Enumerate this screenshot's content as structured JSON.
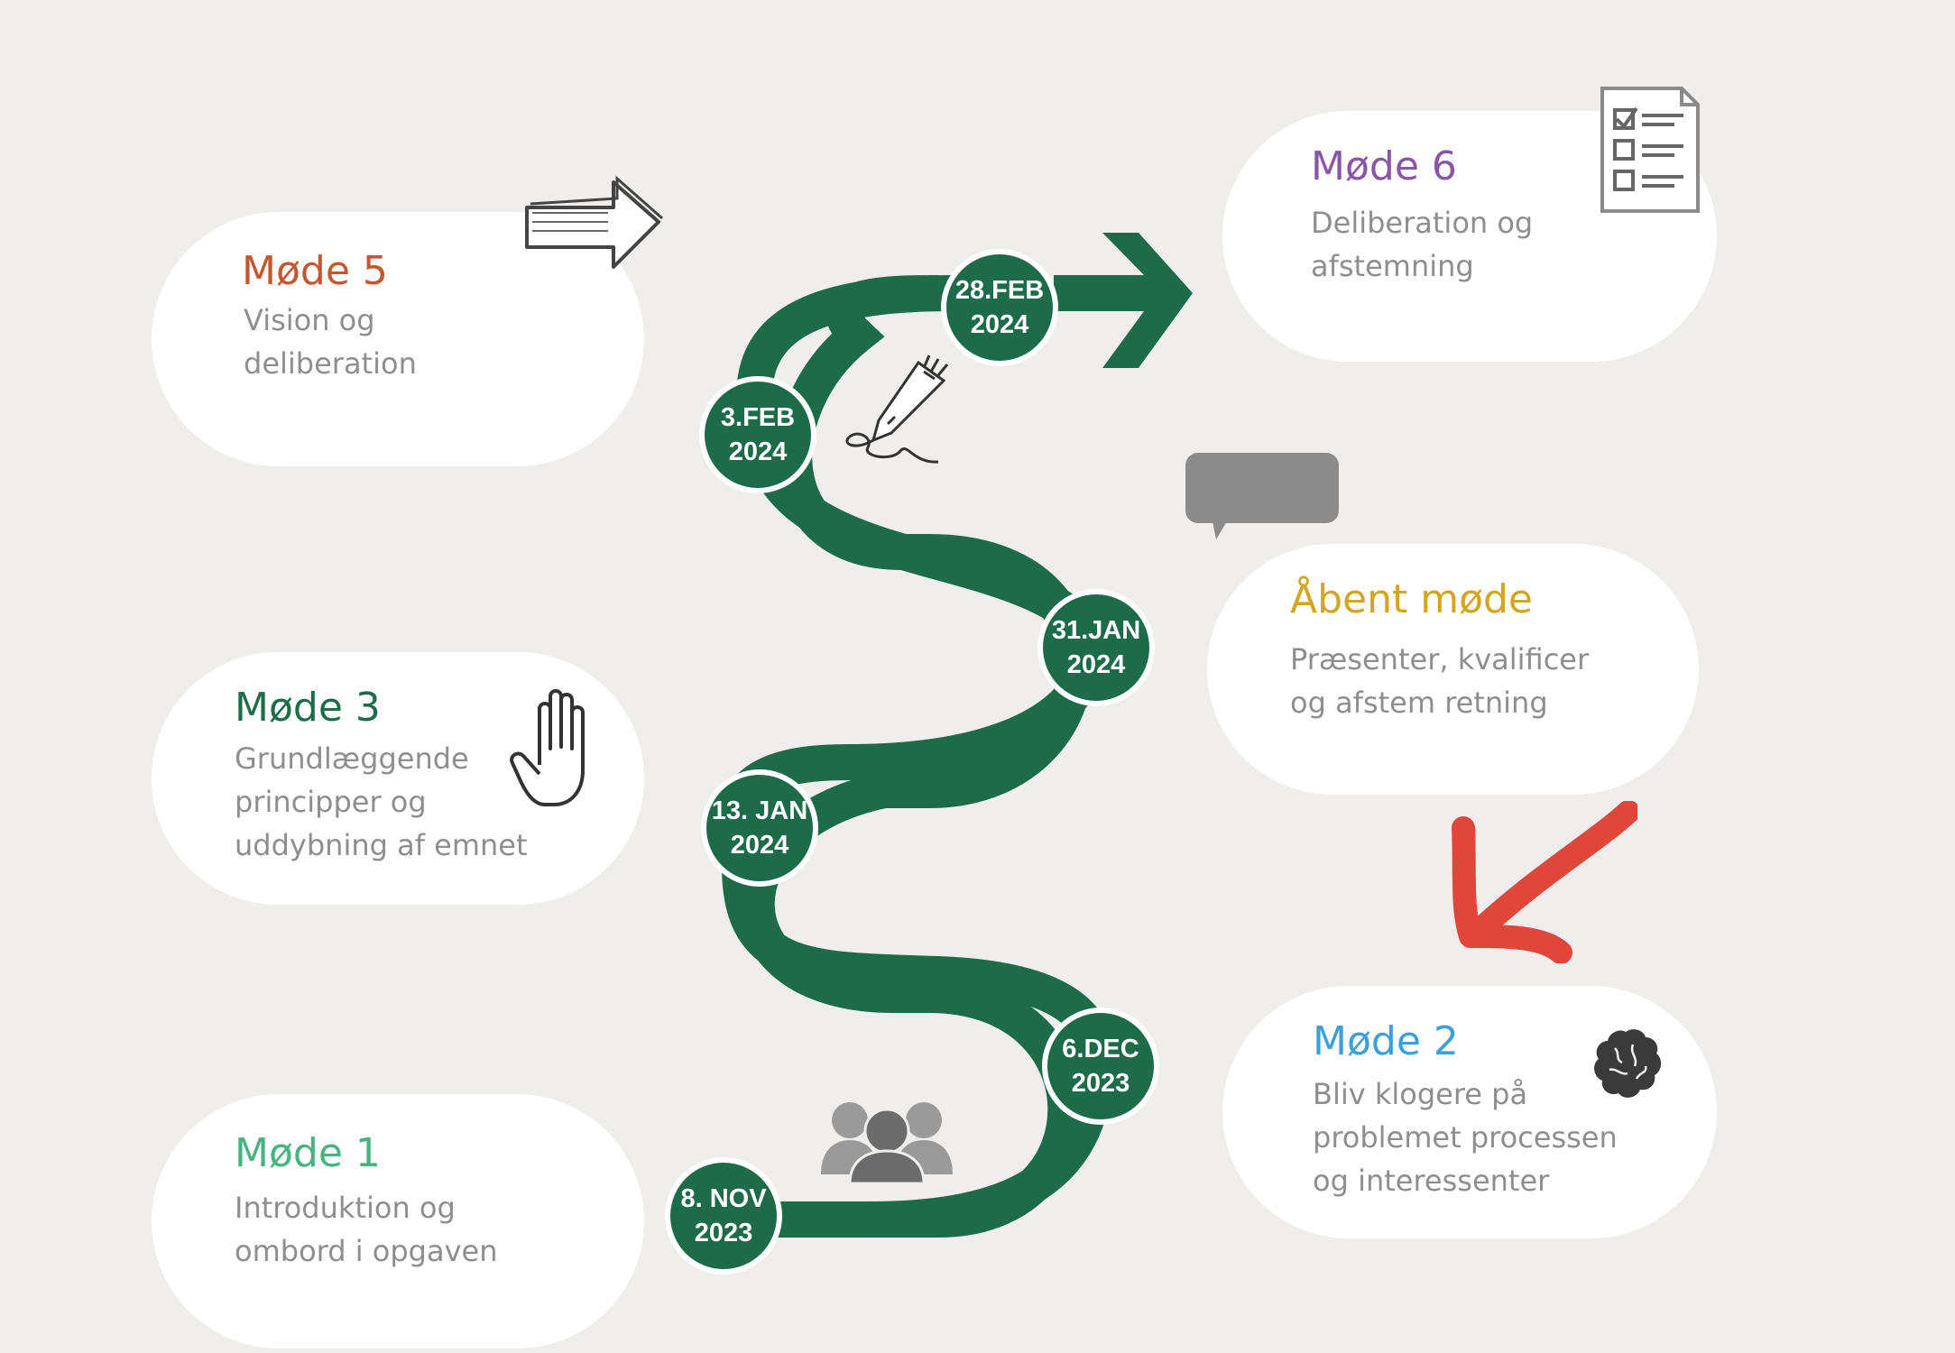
{
  "colors": {
    "background": "#efeeec",
    "road": "#1e6b4a",
    "node_border": "#ffffff",
    "description_text": "#8e8e8e",
    "red_arrow": "#e0463a"
  },
  "meetings": [
    {
      "id": "mode1",
      "title": "Møde 1",
      "title_color": "#47b37f",
      "description": "Introduktion og\nombord i opgaven"
    },
    {
      "id": "mode2",
      "title": "Møde 2",
      "title_color": "#3ca0d6",
      "description": "Bliv klogere på\nproblemet processen\nog interessenter"
    },
    {
      "id": "mode3",
      "title": "Møde 3",
      "title_color": "#1e6b4a",
      "description": "Grundlæggende\nprincipper og\nuddybning af emnet"
    },
    {
      "id": "aabent",
      "title": "Åbent møde",
      "title_color": "#d3a620",
      "description": "Præsenter, kvalificer\nog afstem retning"
    },
    {
      "id": "mode5",
      "title": "Møde 5",
      "title_color": "#c5562d",
      "description": "Vision og\ndeliberation"
    },
    {
      "id": "mode6",
      "title": "Møde 6",
      "title_color": "#8a55a6",
      "description": "Deliberation og\nafstemning"
    }
  ],
  "dates": [
    {
      "id": "d1",
      "label": "8. NOV\n2023"
    },
    {
      "id": "d2",
      "label": "6.DEC\n2023"
    },
    {
      "id": "d3",
      "label": "13. JAN\n2024"
    },
    {
      "id": "d4",
      "label": "31.JAN\n2024"
    },
    {
      "id": "d5",
      "label": "3.FEB\n2024"
    },
    {
      "id": "d6",
      "label": "28.FEB\n2024"
    }
  ],
  "icons": [
    "people-group-icon",
    "brain-icon",
    "hand-icon",
    "speech-bubble-icon",
    "red-arrow-icon",
    "fountain-pen-signature-icon",
    "outline-arrow-icon",
    "checklist-icon",
    "road-end-arrow-icon"
  ]
}
